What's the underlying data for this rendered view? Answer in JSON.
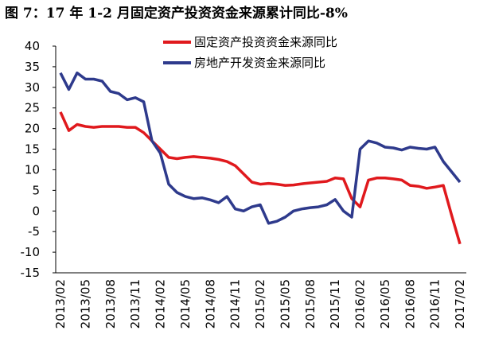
{
  "chart_data": {
    "type": "line",
    "title": "图 7：17 年 1-2 月固定资产投资资金来源累计同比-8%",
    "categories": [
      "2013/02",
      null,
      null,
      "2013/05",
      null,
      null,
      "2013/08",
      null,
      null,
      "2013/11",
      null,
      null,
      "2014/02",
      null,
      null,
      "2014/05",
      null,
      null,
      "2014/08",
      null,
      null,
      "2014/11",
      null,
      null,
      "2015/02",
      null,
      null,
      "2015/05",
      null,
      null,
      "2015/08",
      null,
      null,
      "2015/11",
      null,
      null,
      "2016/02",
      null,
      null,
      "2016/05",
      null,
      null,
      "2016/08",
      null,
      null,
      "2016/11",
      null,
      null,
      "2017/02"
    ],
    "series": [
      {
        "name": "固定资产投资资金来源同比",
        "color": "#e0191d",
        "values": [
          24,
          19.5,
          21,
          20.5,
          20.3,
          20.5,
          20.5,
          20.5,
          20.3,
          20.3,
          19,
          17,
          15,
          13,
          12.7,
          13,
          13.2,
          13,
          12.8,
          12.5,
          12,
          11,
          9,
          7,
          6.5,
          6.7,
          6.5,
          6.2,
          6.3,
          6.6,
          6.8,
          7,
          7.2,
          8,
          7.8,
          3,
          1,
          7.5,
          8,
          8,
          7.8,
          7.5,
          6.2,
          6,
          5.5,
          5.8,
          6.2,
          -1,
          -8
        ]
      },
      {
        "name": "房地产开发资金来源同比",
        "color": "#2e3a8c",
        "values": [
          33.5,
          29.5,
          33.5,
          32,
          32,
          31.5,
          29,
          28.5,
          27,
          27.5,
          26.5,
          17,
          14,
          6.5,
          4.5,
          3.5,
          3,
          3.2,
          2.7,
          2,
          3.5,
          0.5,
          0,
          1,
          1.5,
          -3,
          -2.5,
          -1.5,
          0,
          0.5,
          0.8,
          1,
          1.5,
          2.8,
          0,
          -1.5,
          15,
          17,
          16.5,
          15.5,
          15.3,
          14.8,
          15.5,
          15.2,
          15,
          15.5,
          12,
          9.5,
          7
        ]
      }
    ],
    "ylim": [
      -15,
      40
    ],
    "yticks": [
      -15,
      -10,
      -5,
      0,
      5,
      10,
      15,
      20,
      25,
      30,
      35,
      40
    ],
    "grid": false
  }
}
